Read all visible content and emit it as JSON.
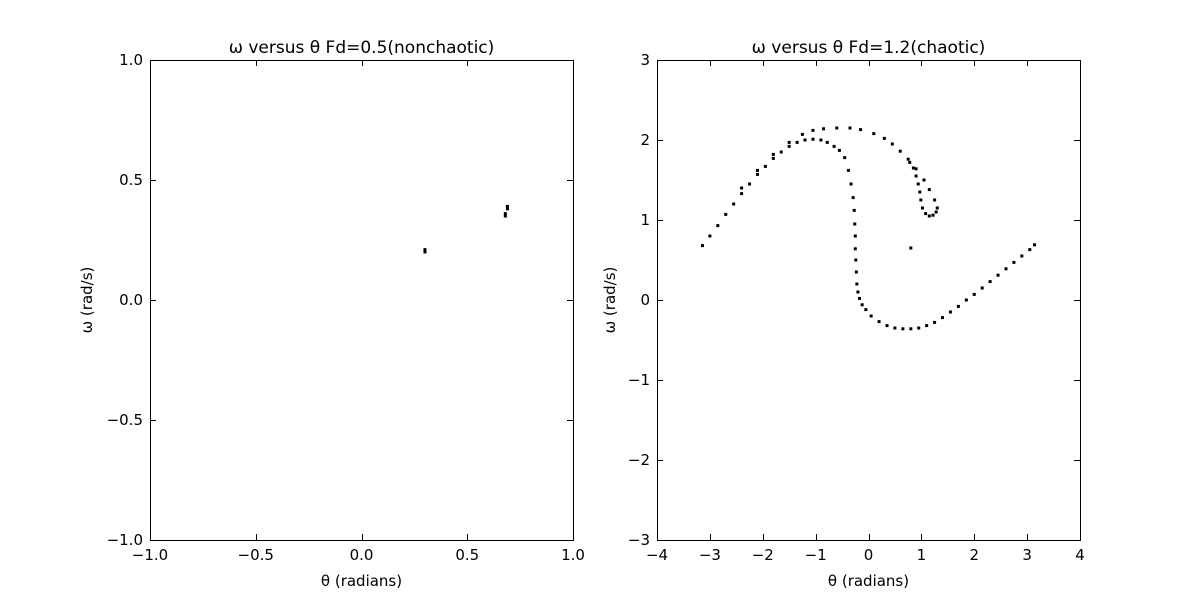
{
  "chart_data": [
    {
      "type": "scatter",
      "title": "ω versus θ  Fd=0.5(nonchaotic)",
      "xlabel": "θ (radians)",
      "ylabel": "ω (rad/s)",
      "xlim": [
        -1.0,
        1.0
      ],
      "ylim": [
        -1.0,
        1.0
      ],
      "xticks": [
        -1.0,
        -0.5,
        0.0,
        0.5,
        1.0
      ],
      "yticks": [
        -1.0,
        -0.5,
        0.0,
        0.5,
        1.0
      ],
      "xtick_labels": [
        "−1.0",
        "−0.5",
        "0.0",
        "0.5",
        "1.0"
      ],
      "ytick_labels": [
        "−1.0",
        "−0.5",
        "0.0",
        "0.5",
        "1.0"
      ],
      "grid": false,
      "marker_color": "#000000",
      "series": [
        {
          "x": [
            0.3,
            0.3,
            0.68,
            0.68,
            0.69,
            0.69
          ],
          "y": [
            0.2,
            0.21,
            0.36,
            0.35,
            0.38,
            0.39
          ]
        }
      ]
    },
    {
      "type": "scatter",
      "title": "ω versus θ  Fd=1.2(chaotic)",
      "xlabel": "θ (radians)",
      "ylabel": "ω (rad/s)",
      "xlim": [
        -4,
        4
      ],
      "ylim": [
        -3,
        3
      ],
      "xticks": [
        -4,
        -3,
        -2,
        -1,
        0,
        1,
        2,
        3,
        4
      ],
      "yticks": [
        -3,
        -2,
        -1,
        0,
        1,
        2,
        3
      ],
      "xtick_labels": [
        "−4",
        "−3",
        "−2",
        "−1",
        "0",
        "1",
        "2",
        "3",
        "4"
      ],
      "ytick_labels": [
        "−3",
        "−2",
        "−1",
        "0",
        "1",
        "2",
        "3"
      ],
      "grid": false,
      "marker_color": "#000000",
      "series": [
        {
          "x": [
            -3.14,
            -3.0,
            -2.85,
            -2.7,
            -2.55,
            -2.4,
            -2.25,
            -2.1,
            -1.95,
            -1.8,
            -1.65,
            -1.5,
            -1.35,
            -1.2,
            -1.05,
            -0.9,
            -0.78,
            -0.65,
            -0.55,
            -0.45,
            -0.38,
            -0.33,
            -0.29,
            -0.27,
            -0.26,
            -0.25,
            -0.25,
            -0.24,
            -0.23,
            -0.22,
            -0.2,
            -0.17,
            -0.12,
            -0.05,
            0.05,
            0.2,
            0.35,
            0.5,
            0.65,
            0.8,
            0.95,
            1.1,
            1.25,
            1.4,
            1.55,
            1.7,
            1.85,
            2.0,
            2.15,
            2.3,
            2.45,
            2.6,
            2.75,
            2.9,
            3.05,
            3.14,
            -2.4,
            -2.1,
            -1.8,
            -1.5,
            -1.25,
            -1.05,
            -0.85,
            -0.6,
            -0.35,
            -0.15,
            0.1,
            0.3,
            0.45,
            0.6,
            0.75,
            0.9,
            1.05,
            1.15,
            1.25,
            1.3,
            1.28,
            1.22,
            1.15,
            1.08,
            1.02,
            0.99,
            0.97,
            0.94,
            0.9,
            0.85,
            0.78,
            0.8
          ],
          "y": [
            0.68,
            0.8,
            0.93,
            1.07,
            1.2,
            1.33,
            1.45,
            1.57,
            1.67,
            1.77,
            1.85,
            1.92,
            1.97,
            2.0,
            2.01,
            2.0,
            1.97,
            1.92,
            1.87,
            1.78,
            1.62,
            1.45,
            1.28,
            1.12,
            0.95,
            0.8,
            0.64,
            0.5,
            0.35,
            0.2,
            0.1,
            0.02,
            -0.06,
            -0.12,
            -0.2,
            -0.27,
            -0.32,
            -0.35,
            -0.36,
            -0.36,
            -0.35,
            -0.32,
            -0.28,
            -0.22,
            -0.15,
            -0.08,
            0.0,
            0.07,
            0.15,
            0.23,
            0.31,
            0.39,
            0.47,
            0.55,
            0.63,
            0.69,
            1.4,
            1.62,
            1.82,
            1.97,
            2.07,
            2.12,
            2.14,
            2.15,
            2.15,
            2.13,
            2.08,
            2.02,
            1.95,
            1.86,
            1.76,
            1.64,
            1.5,
            1.38,
            1.25,
            1.15,
            1.1,
            1.06,
            1.05,
            1.08,
            1.15,
            1.25,
            1.35,
            1.45,
            1.55,
            1.65,
            1.72,
            0.65
          ]
        }
      ]
    }
  ]
}
